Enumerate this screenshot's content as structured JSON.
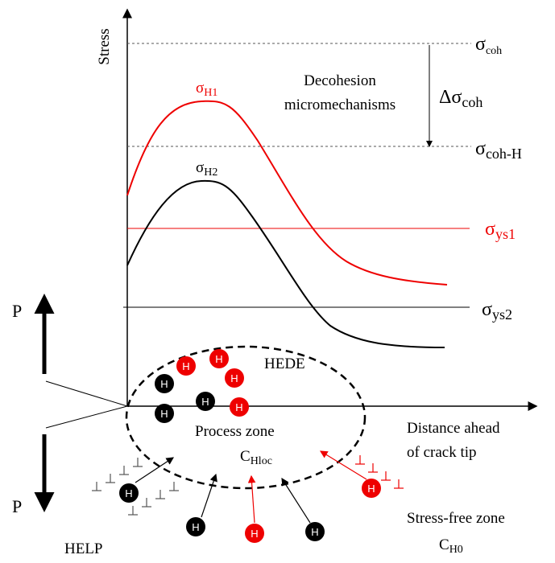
{
  "axes": {
    "y_label": "Stress",
    "x_label": [
      "Distance ahead",
      "of crack tip"
    ]
  },
  "stress_levels": {
    "coh": {
      "symbol": "σ",
      "subscript": "coh"
    },
    "delta_coh": {
      "symbol": "Δσ",
      "subscript": "coh"
    },
    "coh_h": {
      "symbol": "σ",
      "subscript": "coh-H"
    },
    "h1": {
      "symbol": "σ",
      "subscript": "H1"
    },
    "h2": {
      "symbol": "σ",
      "subscript": "H2"
    },
    "ys1": {
      "symbol": "σ",
      "subscript": "ys1"
    },
    "ys2": {
      "symbol": "σ",
      "subscript": "ys2"
    }
  },
  "annotations": {
    "decohesion": [
      "Decohesion",
      "micromechanisms"
    ],
    "hede": "HEDE",
    "process_zone": "Process zone",
    "c_hloc": {
      "symbol": "C",
      "subscript": "Hloc"
    },
    "stress_free": "Stress-free zone",
    "c_h0": {
      "symbol": "C",
      "subscript": "H0"
    },
    "help": "HELP",
    "load_top": "P",
    "load_bottom": "P"
  },
  "hydrogen_atoms": [
    "H",
    "H",
    "H",
    "H",
    "H",
    "H",
    "H",
    "H",
    "H",
    "H",
    "H",
    "H"
  ]
}
